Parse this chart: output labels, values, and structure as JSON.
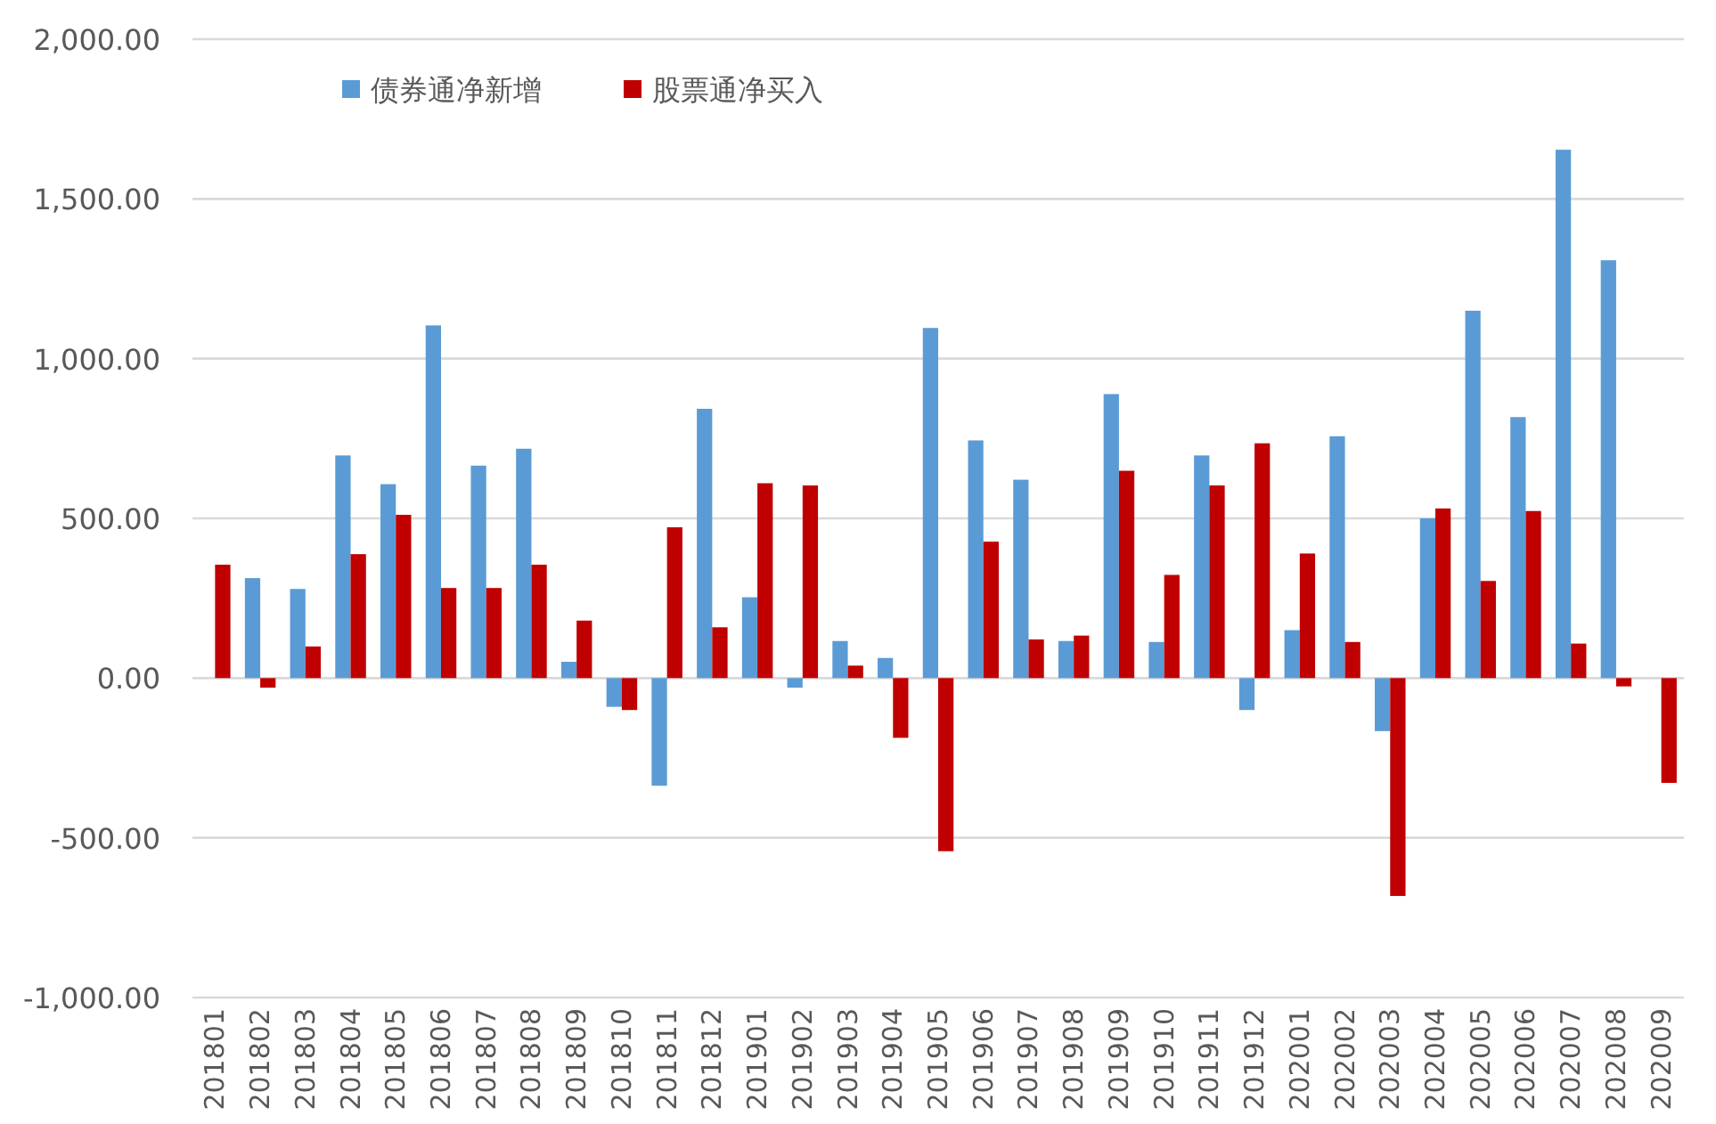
{
  "chart_data": {
    "type": "bar",
    "categories": [
      "201801",
      "201802",
      "201803",
      "201804",
      "201805",
      "201806",
      "201807",
      "201808",
      "201809",
      "201810",
      "201811",
      "201812",
      "201901",
      "201902",
      "201903",
      "201904",
      "201905",
      "201906",
      "201907",
      "201908",
      "201909",
      "201910",
      "201911",
      "201912",
      "202001",
      "202002",
      "202003",
      "202004",
      "202005",
      "202006",
      "202007",
      "202008",
      "202009"
    ],
    "series": [
      {
        "name": "债券通净新增",
        "color": "#5b9bd5",
        "values": [
          0,
          313,
          279,
          697,
          607,
          1104,
          665,
          718,
          51,
          -90,
          -337,
          843,
          253,
          -30,
          116,
          63,
          1096,
          744,
          621,
          116,
          889,
          113,
          697,
          -100,
          150,
          757,
          -166,
          500,
          1150,
          817,
          1654,
          1308,
          0
        ]
      },
      {
        "name": "股票通净买入",
        "color": "#c00000",
        "values": [
          355,
          -30,
          99,
          388,
          511,
          282,
          282,
          355,
          180,
          -100,
          472,
          159,
          610,
          603,
          39,
          -187,
          -542,
          427,
          121,
          133,
          649,
          323,
          603,
          735,
          390,
          113,
          -682,
          531,
          304,
          523,
          108,
          -26,
          -328
        ]
      }
    ],
    "ylim": [
      -1000,
      2000
    ],
    "yticks": [
      {
        "value": -1000,
        "label": "-1,000.00"
      },
      {
        "value": -500,
        "label": "-500.00"
      },
      {
        "value": 0,
        "label": "0.00"
      },
      {
        "value": 500,
        "label": "500.00"
      },
      {
        "value": 1000,
        "label": "1,000.00"
      },
      {
        "value": 1500,
        "label": "1,500.00"
      },
      {
        "value": 2000,
        "label": "2,000.00"
      }
    ],
    "grid": "y",
    "legend": "top"
  }
}
